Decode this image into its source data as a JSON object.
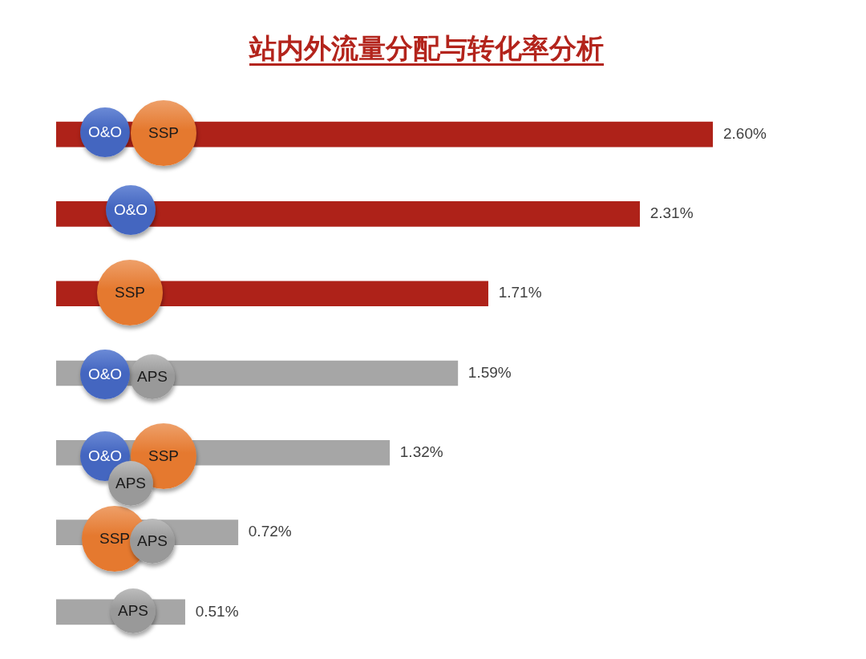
{
  "chart_data": {
    "type": "bar",
    "orientation": "horizontal",
    "title": "站内外流量分配与转化率分析",
    "categories": [
      "O&O SSP",
      "O&O",
      "SSP",
      "O&O APS",
      "O&O SSP APS",
      "SSP APS",
      "APS"
    ],
    "values": [
      2.6,
      2.31,
      1.71,
      1.59,
      1.32,
      0.72,
      0.51
    ],
    "colors": [
      "#ae2219",
      "#ae2219",
      "#ae2219",
      "#a6a6a6",
      "#a6a6a6",
      "#a6a6a6",
      "#a6a6a6"
    ],
    "value_labels": [
      "2.60%",
      "2.31%",
      "1.71%",
      "1.59%",
      "1.32%",
      "0.72%",
      "0.51%"
    ]
  }
}
